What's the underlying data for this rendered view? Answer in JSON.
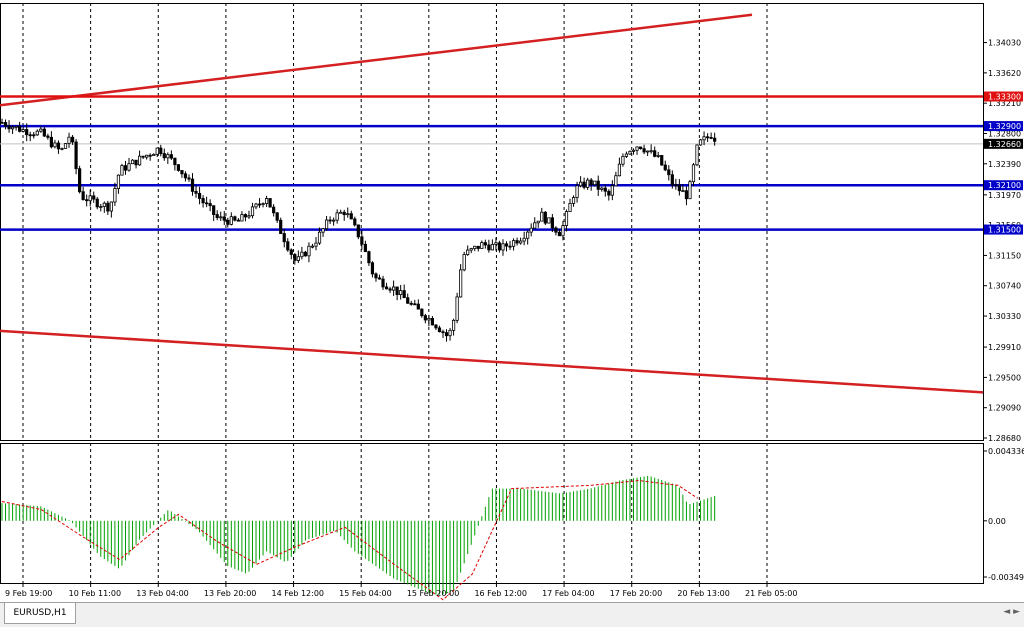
{
  "window": {
    "tab_label": "EURUSD,H1"
  },
  "colors": {
    "support_resistance_blue": "#0000c8",
    "resistance_red": "#e01010",
    "trend_red": "#d42020",
    "candle": "#000000",
    "histogram": "#00a000",
    "signal": "#e00000",
    "grid": "#000000",
    "bid_tag": "#000000"
  },
  "chart_data": [
    {
      "type": "candlestick",
      "symbol": "EURUSD",
      "timeframe": "H1",
      "grid": true,
      "ylim": [
        1.2868,
        1.3443
      ],
      "y_ticks": [
        "1.34030",
        "1.33620",
        "1.33210",
        "1.32800",
        "1.32390",
        "1.31970",
        "1.31560",
        "1.31150",
        "1.30740",
        "1.30330",
        "1.29910",
        "1.29500",
        "1.29090",
        "1.28680"
      ],
      "x_ticks": [
        "9 Feb 19:00",
        "10 Feb 11:00",
        "13 Feb 04:00",
        "13 Feb 20:00",
        "14 Feb 12:00",
        "15 Feb 04:00",
        "15 Feb 20:00",
        "16 Feb 12:00",
        "17 Feb 04:00",
        "17 Feb 20:00",
        "20 Feb 13:00",
        "21 Feb 05:00"
      ],
      "horizontal_levels": [
        {
          "price": 1.333,
          "label": "1.33300",
          "color": "#e01010"
        },
        {
          "price": 1.329,
          "label": "1.32900",
          "color": "#0000c8"
        },
        {
          "price": 1.321,
          "label": "1.32100",
          "color": "#0000c8"
        },
        {
          "price": 1.315,
          "label": "1.31500",
          "color": "#0000c8"
        }
      ],
      "current_price": {
        "price": 1.3266,
        "label": "1.32660"
      },
      "trendlines": [
        {
          "name": "upper-channel-line",
          "x": [
            "9 Feb 19:00",
            "21 Feb 05:00"
          ],
          "y": [
            1.3322,
            1.3443
          ]
        },
        {
          "name": "lower-channel-line",
          "x": [
            "9 Feb 19:00",
            "21 Feb 05:00"
          ],
          "y": [
            1.3011,
            1.2948
          ]
        }
      ],
      "close_path": [
        [
          0.0,
          1.3295
        ],
        [
          0.02,
          1.3285
        ],
        [
          0.04,
          1.328
        ],
        [
          0.06,
          1.3255
        ],
        [
          0.07,
          1.328
        ],
        [
          0.08,
          1.3195
        ],
        [
          0.1,
          1.3185
        ],
        [
          0.11,
          1.318
        ],
        [
          0.12,
          1.323
        ],
        [
          0.14,
          1.3245
        ],
        [
          0.16,
          1.326
        ],
        [
          0.18,
          1.3235
        ],
        [
          0.2,
          1.3195
        ],
        [
          0.22,
          1.3165
        ],
        [
          0.24,
          1.316
        ],
        [
          0.255,
          1.3175
        ],
        [
          0.27,
          1.3195
        ],
        [
          0.28,
          1.316
        ],
        [
          0.3,
          1.3105
        ],
        [
          0.32,
          1.3135
        ],
        [
          0.335,
          1.3165
        ],
        [
          0.35,
          1.3175
        ],
        [
          0.365,
          1.314
        ],
        [
          0.38,
          1.3085
        ],
        [
          0.4,
          1.307
        ],
        [
          0.42,
          1.3045
        ],
        [
          0.44,
          1.3025
        ],
        [
          0.455,
          1.3005
        ],
        [
          0.46,
          1.302
        ],
        [
          0.47,
          1.3115
        ],
        [
          0.49,
          1.313
        ],
        [
          0.51,
          1.3125
        ],
        [
          0.53,
          1.314
        ],
        [
          0.55,
          1.317
        ],
        [
          0.57,
          1.3145
        ],
        [
          0.585,
          1.3205
        ],
        [
          0.6,
          1.3215
        ],
        [
          0.62,
          1.3195
        ],
        [
          0.635,
          1.3255
        ],
        [
          0.65,
          1.3265
        ],
        [
          0.67,
          1.3245
        ],
        [
          0.685,
          1.321
        ],
        [
          0.7,
          1.3195
        ],
        [
          0.71,
          1.3265
        ],
        [
          0.725,
          1.328
        ],
        [
          0.73,
          1.3266
        ]
      ]
    },
    {
      "type": "bar",
      "name": "oscillator",
      "y_ticks": [
        "0.004336",
        "0.00",
        "-0.00349"
      ],
      "ylim": [
        -0.00349,
        0.004336
      ],
      "histogram_path": [
        [
          0.0,
          0.0011
        ],
        [
          0.04,
          0.0009
        ],
        [
          0.07,
          0.0
        ],
        [
          0.1,
          -0.0022
        ],
        [
          0.12,
          -0.003
        ],
        [
          0.14,
          -0.0012
        ],
        [
          0.17,
          0.0007
        ],
        [
          0.2,
          -0.0006
        ],
        [
          0.23,
          -0.0028
        ],
        [
          0.25,
          -0.0033
        ],
        [
          0.27,
          -0.0019
        ],
        [
          0.29,
          -0.0026
        ],
        [
          0.31,
          -0.0012
        ],
        [
          0.34,
          -0.0006
        ],
        [
          0.36,
          -0.0019
        ],
        [
          0.4,
          -0.0036
        ],
        [
          0.44,
          -0.0046
        ],
        [
          0.46,
          -0.0045
        ],
        [
          0.48,
          -0.0013
        ],
        [
          0.5,
          0.002
        ],
        [
          0.53,
          0.002
        ],
        [
          0.57,
          0.0017
        ],
        [
          0.6,
          0.002
        ],
        [
          0.63,
          0.0025
        ],
        [
          0.66,
          0.0028
        ],
        [
          0.69,
          0.0022
        ],
        [
          0.7,
          0.001
        ],
        [
          0.73,
          0.0016
        ]
      ],
      "signal_path": [
        [
          0.0,
          0.0012
        ],
        [
          0.04,
          0.0007
        ],
        [
          0.08,
          -0.0009
        ],
        [
          0.12,
          -0.0024
        ],
        [
          0.16,
          -0.0004
        ],
        [
          0.18,
          0.0004
        ],
        [
          0.22,
          -0.0013
        ],
        [
          0.26,
          -0.0027
        ],
        [
          0.3,
          -0.0016
        ],
        [
          0.35,
          -0.0004
        ],
        [
          0.4,
          -0.0027
        ],
        [
          0.45,
          -0.0049
        ],
        [
          0.48,
          -0.0033
        ],
        [
          0.52,
          0.002
        ],
        [
          0.56,
          0.0021
        ],
        [
          0.6,
          0.0022
        ],
        [
          0.65,
          0.0025
        ],
        [
          0.69,
          0.0022
        ],
        [
          0.71,
          0.0014
        ]
      ]
    }
  ]
}
